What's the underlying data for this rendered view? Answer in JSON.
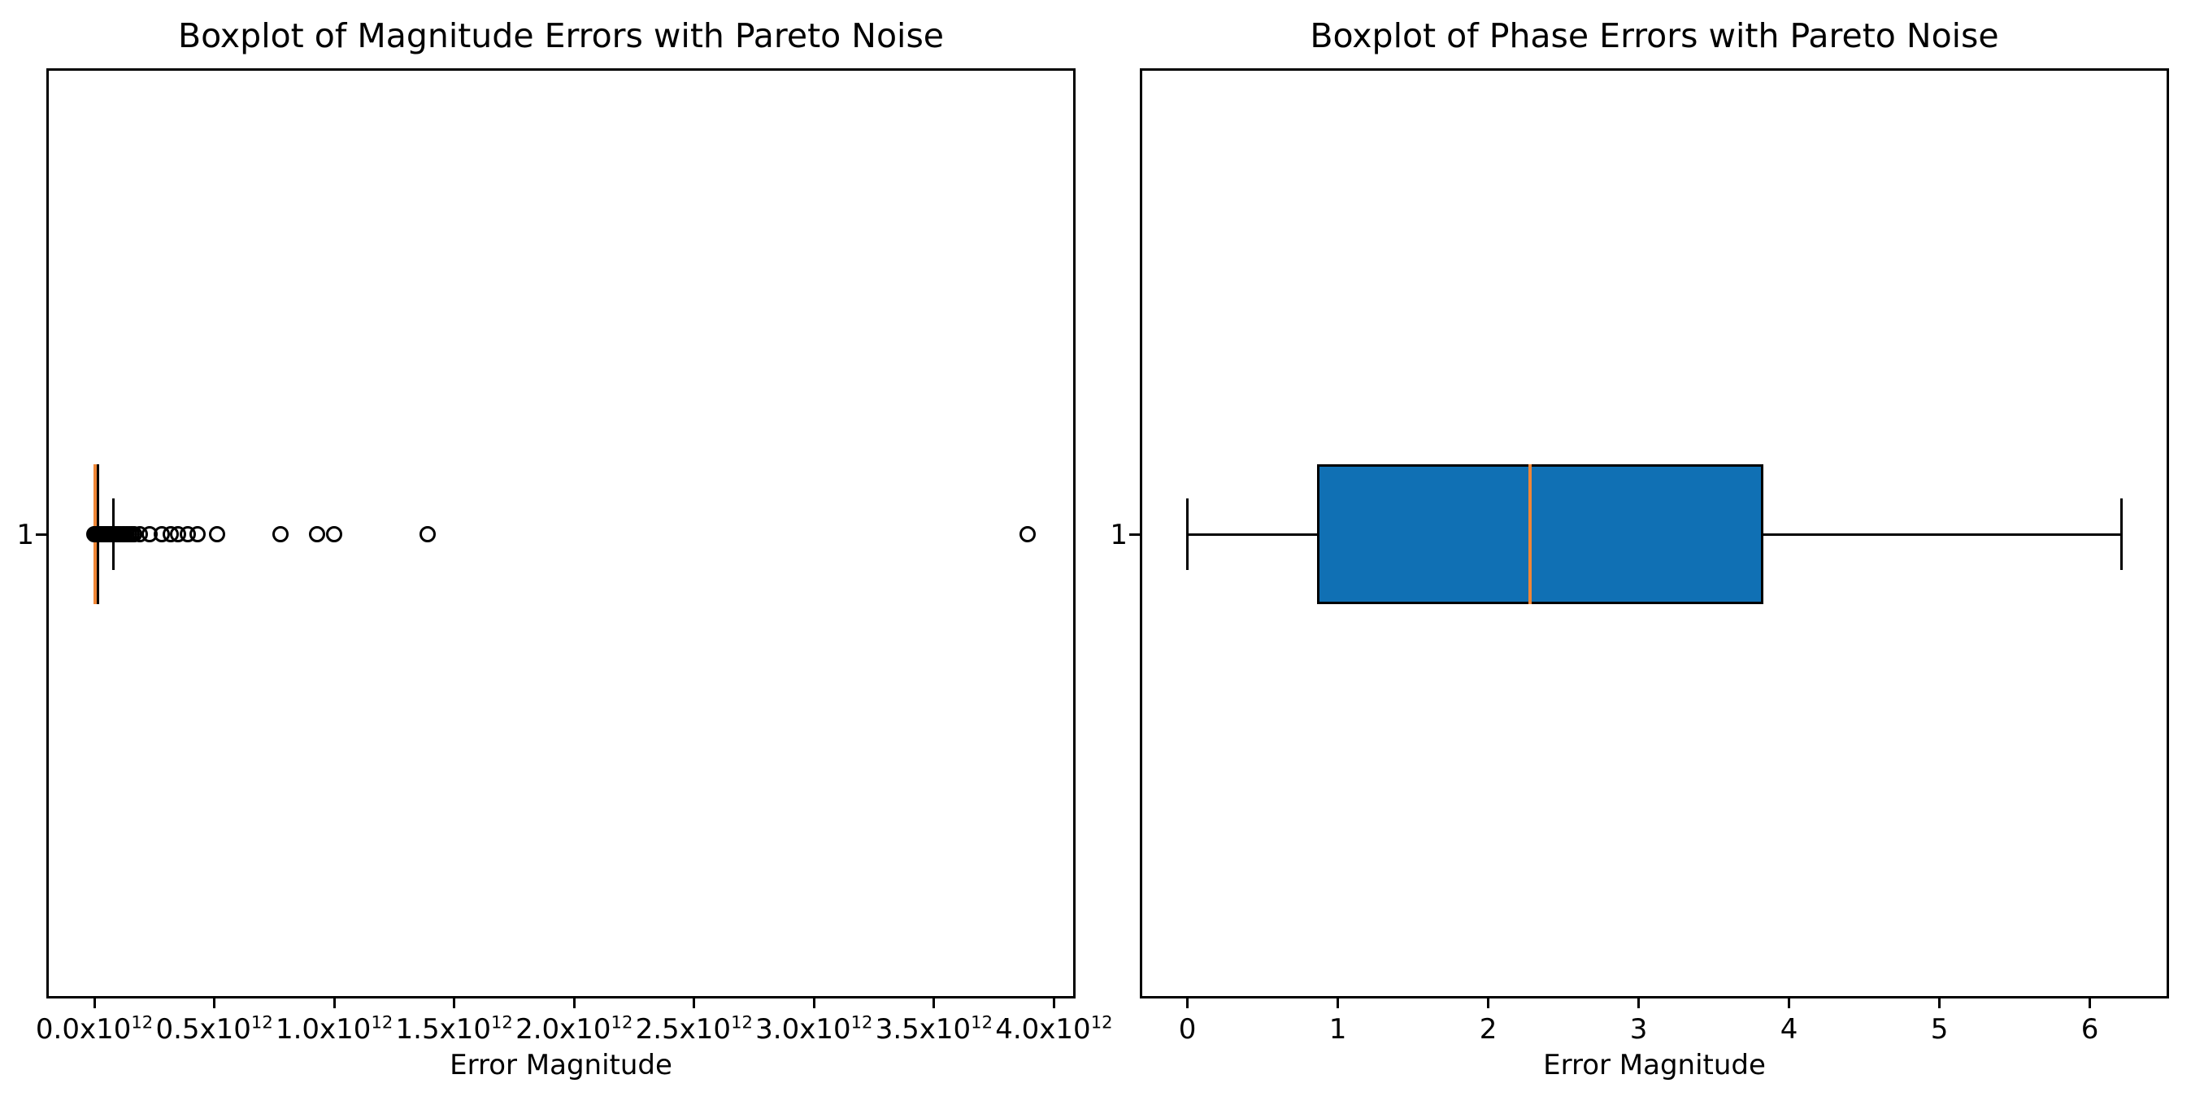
{
  "figure": {
    "background": "#ffffff"
  },
  "chart_data": [
    {
      "type": "boxplot",
      "orientation": "horizontal",
      "title": "Boxplot of Magnitude Errors with Pareto Noise",
      "xlabel": "Error Magnitude",
      "y_tick_label": "1",
      "xlim": [
        -0.19,
        4.08
      ],
      "x_value_scale": "1e12",
      "x_ticks": [
        {
          "value": 0.0,
          "label": "0.0x10^12"
        },
        {
          "value": 0.5,
          "label": "0.5x10^12"
        },
        {
          "value": 1.0,
          "label": "1.0x10^12"
        },
        {
          "value": 1.5,
          "label": "1.5x10^12"
        },
        {
          "value": 2.0,
          "label": "2.0x10^12"
        },
        {
          "value": 2.5,
          "label": "2.5x10^12"
        },
        {
          "value": 3.0,
          "label": "3.0x10^12"
        },
        {
          "value": 3.5,
          "label": "3.5x10^12"
        },
        {
          "value": 4.0,
          "label": "4.0x10^12"
        }
      ],
      "stats": {
        "whisker_low": 0.0,
        "q1": 0.001,
        "median": 0.004,
        "q3": 0.02,
        "whisker_high": 0.08
      },
      "outliers": [
        0.0,
        0.003,
        0.006,
        0.009,
        0.012,
        0.016,
        0.02,
        0.024,
        0.028,
        0.033,
        0.038,
        0.043,
        0.048,
        0.054,
        0.06,
        0.066,
        0.072,
        0.079,
        0.086,
        0.093,
        0.101,
        0.109,
        0.117,
        0.126,
        0.135,
        0.145,
        0.155,
        0.165,
        0.19,
        0.23,
        0.28,
        0.32,
        0.35,
        0.39,
        0.43,
        0.51,
        0.775,
        0.93,
        1.0,
        1.39,
        3.89
      ],
      "colors": {
        "box_fill": "#1070b4",
        "median": "#ef8636",
        "line": "#000000"
      }
    },
    {
      "type": "boxplot",
      "orientation": "horizontal",
      "title": "Boxplot of Phase Errors with Pareto Noise",
      "xlabel": "Error Magnitude",
      "y_tick_label": "1",
      "xlim": [
        -0.3,
        6.51
      ],
      "x_value_scale": "1",
      "x_ticks": [
        {
          "value": 0,
          "label": "0"
        },
        {
          "value": 1,
          "label": "1"
        },
        {
          "value": 2,
          "label": "2"
        },
        {
          "value": 3,
          "label": "3"
        },
        {
          "value": 4,
          "label": "4"
        },
        {
          "value": 5,
          "label": "5"
        },
        {
          "value": 6,
          "label": "6"
        }
      ],
      "stats": {
        "whisker_low": 0.0,
        "q1": 0.86,
        "median": 2.28,
        "q3": 3.83,
        "whisker_high": 6.21
      },
      "outliers": [],
      "colors": {
        "box_fill": "#1070b4",
        "median": "#ef8636",
        "line": "#000000"
      }
    }
  ]
}
